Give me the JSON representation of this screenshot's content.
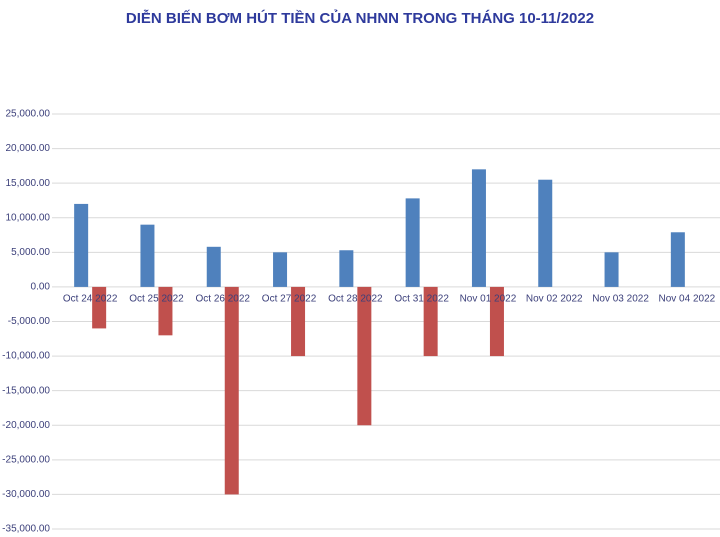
{
  "chart_data": {
    "type": "bar",
    "title": "DIỄN BIẾN BƠM HÚT TIỀN CỦA NHNN TRONG THÁNG 10-11/2022",
    "categories": [
      "Oct 24 2022",
      "Oct 25 2022",
      "Oct 26 2022",
      "Oct 27 2022",
      "Oct 28 2022",
      "Oct 31 2022",
      "Nov 01 2022",
      "Nov 02 2022",
      "Nov 03 2022",
      "Nov 04 2022"
    ],
    "series": [
      {
        "color": "#4f81bd",
        "values": [
          12000,
          9000,
          5800,
          5000,
          5300,
          12800,
          17000,
          15500,
          5000,
          7900
        ]
      },
      {
        "color": "#c0504d",
        "values": [
          -6000,
          -7000,
          -30000,
          -10000,
          -20000,
          -10000,
          -10000,
          null,
          null,
          null
        ]
      }
    ],
    "ylim": [
      -35000,
      25000
    ],
    "yticks": [
      {
        "value": 25000,
        "label": "25,000.00"
      },
      {
        "value": 20000,
        "label": "20,000.00"
      },
      {
        "value": 15000,
        "label": "15,000.00"
      },
      {
        "value": 10000,
        "label": "10,000.00"
      },
      {
        "value": 5000,
        "label": "5,000.00"
      },
      {
        "value": 0,
        "label": "0.00"
      },
      {
        "value": -5000,
        "label": "-5,000.00"
      },
      {
        "value": -10000,
        "label": "-10,000.00"
      },
      {
        "value": -15000,
        "label": "-15,000.00"
      },
      {
        "value": -20000,
        "label": "-20,000.00"
      },
      {
        "value": -25000,
        "label": "-25,000.00"
      },
      {
        "value": -30000,
        "label": "-30,000.00"
      },
      {
        "value": -35000,
        "label": "-35,000.00"
      }
    ],
    "grid": true
  }
}
